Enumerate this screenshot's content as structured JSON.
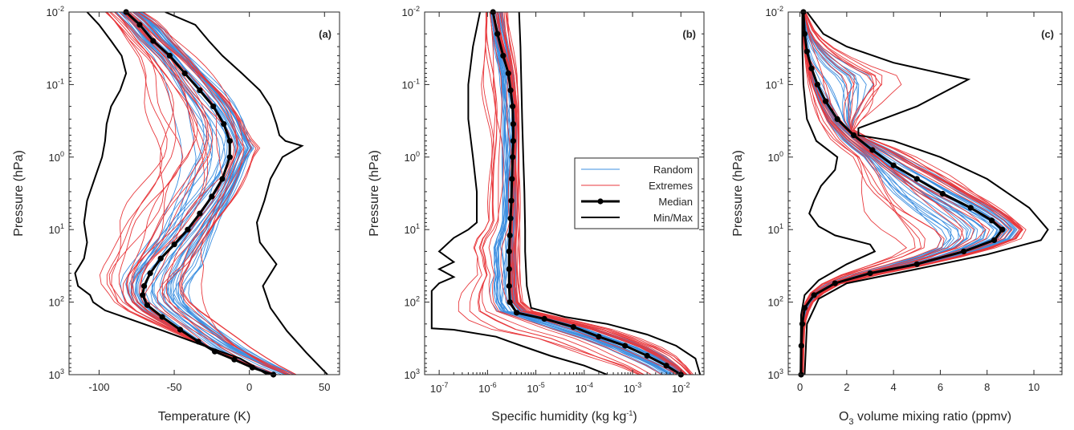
{
  "chart_data": [
    {
      "type": "line",
      "panel_label": "(a)",
      "xlabel": "Temperature (K)",
      "ylabel": "Pressure (hPa)",
      "xlim": [
        -120,
        60
      ],
      "ylim": [
        0.01,
        1000
      ],
      "y_scale": "log",
      "y_reversed": true,
      "xtick_labels": [
        "-100",
        "-50",
        "0",
        "50"
      ],
      "ytick_labels": [
        "10^-2",
        "10^-1",
        "10^0",
        "10^1",
        "10^2",
        "10^3"
      ],
      "series": [
        {
          "name": "Median",
          "x": [
            -82,
            -73,
            -64,
            -53,
            -43,
            -33,
            -24,
            -17,
            -13,
            -13,
            -18,
            -25,
            -33,
            -41,
            -50,
            -59,
            -66,
            -70,
            -71,
            -68,
            -58,
            -46,
            -34,
            -23,
            -10,
            2,
            16
          ],
          "y": [
            0.01,
            0.015,
            0.025,
            0.04,
            0.07,
            0.12,
            0.2,
            0.35,
            0.6,
            1,
            2,
            3.5,
            6,
            10,
            16,
            25,
            40,
            60,
            80,
            110,
            160,
            240,
            350,
            480,
            620,
            800,
            1000
          ]
        },
        {
          "name": "Min",
          "x": [
            -108,
            -100,
            -92,
            -85,
            -82,
            -86,
            -92,
            -95,
            -96,
            -98,
            -103,
            -108,
            -110,
            -108,
            -110,
            -116,
            -114,
            -106,
            -104,
            -96,
            -80,
            -57,
            -30,
            -6,
            12
          ],
          "y": [
            0.01,
            0.015,
            0.025,
            0.04,
            0.07,
            0.12,
            0.2,
            0.35,
            0.6,
            1,
            2,
            4,
            8,
            15,
            25,
            40,
            60,
            80,
            100,
            130,
            170,
            250,
            400,
            600,
            1000
          ]
        },
        {
          "name": "Max",
          "x": [
            -56,
            -36,
            -27,
            -18,
            -5,
            7,
            14,
            18,
            20,
            24,
            35,
            22,
            14,
            10,
            5,
            7,
            18,
            9,
            14,
            25,
            38,
            52
          ],
          "y": [
            0.01,
            0.015,
            0.025,
            0.04,
            0.07,
            0.12,
            0.2,
            0.35,
            0.5,
            0.6,
            0.7,
            1,
            2,
            4,
            8,
            15,
            30,
            60,
            120,
            250,
            500,
            1000
          ]
        }
      ]
    },
    {
      "type": "line",
      "panel_label": "(b)",
      "xlabel": "Specific humidity (kg kg^-1)",
      "ylabel": "Pressure (hPa)",
      "xlim": [
        5e-08,
        0.03
      ],
      "x_scale": "log",
      "ylim": [
        0.01,
        1000
      ],
      "y_scale": "log",
      "y_reversed": true,
      "xtick_labels": [
        "10^-7",
        "10^-6",
        "10^-5",
        "10^-4",
        "10^-3",
        "10^-2"
      ],
      "ytick_labels": [
        "10^-2",
        "10^-1",
        "10^0",
        "10^1",
        "10^2",
        "10^3"
      ],
      "legend": {
        "entries": [
          "Random",
          "Extremes",
          "Median",
          "Min/Max"
        ],
        "position": "center-right"
      },
      "series": [
        {
          "name": "Median",
          "x": [
            1.3e-06,
            1.6e-06,
            2.1e-06,
            2.7e-06,
            3e-06,
            3.3e-06,
            3.4e-06,
            3.4e-06,
            3.3e-06,
            3.2e-06,
            3.1e-06,
            3e-06,
            2.9e-06,
            2.8e-06,
            2.8e-06,
            2.8e-06,
            2.9e-06,
            4e-06,
            1.5e-05,
            6e-05,
            0.0002,
            0.0007,
            0.002,
            0.005,
            0.01
          ],
          "y": [
            0.01,
            0.02,
            0.04,
            0.07,
            0.12,
            0.2,
            0.35,
            0.6,
            1,
            2,
            4,
            7,
            12,
            20,
            35,
            60,
            100,
            140,
            170,
            220,
            300,
            400,
            550,
            750,
            1000
          ]
        },
        {
          "name": "Min",
          "x": [
            7e-07,
            5e-07,
            4e-07,
            4e-07,
            5e-07,
            6e-07,
            6e-07,
            4e-07,
            2e-07,
            1e-07,
            2e-07,
            1e-07,
            2e-07,
            1e-07,
            7e-08,
            7e-08,
            2e-07,
            1.5e-06,
            5e-06,
            2e-05,
            0.0001,
            0.0003
          ],
          "y": [
            0.01,
            0.03,
            0.1,
            0.3,
            1,
            3,
            8,
            10,
            13,
            20,
            28,
            35,
            45,
            55,
            70,
            230,
            240,
            300,
            400,
            550,
            750,
            1000
          ]
        },
        {
          "name": "Max",
          "x": [
            4.5e-06,
            4.8e-06,
            5e-06,
            5.2e-06,
            5.5e-06,
            5.8e-06,
            6e-06,
            6e-06,
            6.5e-06,
            8e-06,
            4e-05,
            0.0003,
            0.002,
            0.008,
            0.02,
            0.025
          ],
          "y": [
            0.01,
            0.03,
            0.1,
            0.3,
            1,
            3,
            10,
            20,
            60,
            120,
            160,
            200,
            280,
            400,
            600,
            1000
          ]
        }
      ]
    },
    {
      "type": "line",
      "panel_label": "(c)",
      "xlabel": "O3 volume mixing ratio (ppmv)",
      "ylabel": "Pressure (hPa)",
      "xlim": [
        -0.5,
        11.2
      ],
      "ylim": [
        0.01,
        1000
      ],
      "y_scale": "log",
      "y_reversed": true,
      "xtick_labels": [
        "0",
        "2",
        "4",
        "6",
        "8",
        "10"
      ],
      "ytick_labels": [
        "10^-2",
        "10^-1",
        "10^0",
        "10^1",
        "10^2",
        "10^3"
      ],
      "series": [
        {
          "name": "Median",
          "x": [
            0.15,
            0.2,
            0.3,
            0.5,
            0.75,
            1.1,
            1.6,
            2.3,
            3.1,
            4,
            5,
            6.1,
            7.3,
            8.2,
            8.65,
            8.3,
            7,
            5,
            3,
            1.5,
            0.6,
            0.2,
            0.1,
            0.06,
            0.05
          ],
          "y": [
            0.01,
            0.02,
            0.035,
            0.06,
            0.1,
            0.17,
            0.3,
            0.5,
            0.8,
            1.3,
            2,
            3.2,
            5,
            7.5,
            10,
            14,
            20,
            30,
            40,
            55,
            80,
            120,
            200,
            400,
            1000
          ]
        },
        {
          "name": "Min",
          "x": [
            0.1,
            0.1,
            0.15,
            0.3,
            0.7,
            1.6,
            1.5,
            0.9,
            0.6,
            0.4,
            0.8,
            1.5,
            3,
            3.2,
            2,
            0.8,
            0.2,
            0.05,
            0.02
          ],
          "y": [
            0.01,
            0.03,
            0.1,
            0.3,
            0.6,
            1,
            1.5,
            2.5,
            4,
            6,
            9,
            12,
            16,
            20,
            30,
            50,
            80,
            150,
            1000
          ]
        },
        {
          "name": "Max",
          "x": [
            0.3,
            1,
            2,
            4,
            7.2,
            5,
            2.5,
            2.5,
            4,
            6,
            8,
            9.8,
            10.6,
            10.3,
            8,
            5,
            2,
            0.8,
            0.3,
            0.2
          ],
          "y": [
            0.01,
            0.02,
            0.03,
            0.05,
            0.085,
            0.2,
            0.4,
            0.5,
            0.6,
            1,
            2,
            5,
            10,
            14,
            22,
            35,
            55,
            90,
            200,
            1000
          ]
        }
      ]
    }
  ]
}
